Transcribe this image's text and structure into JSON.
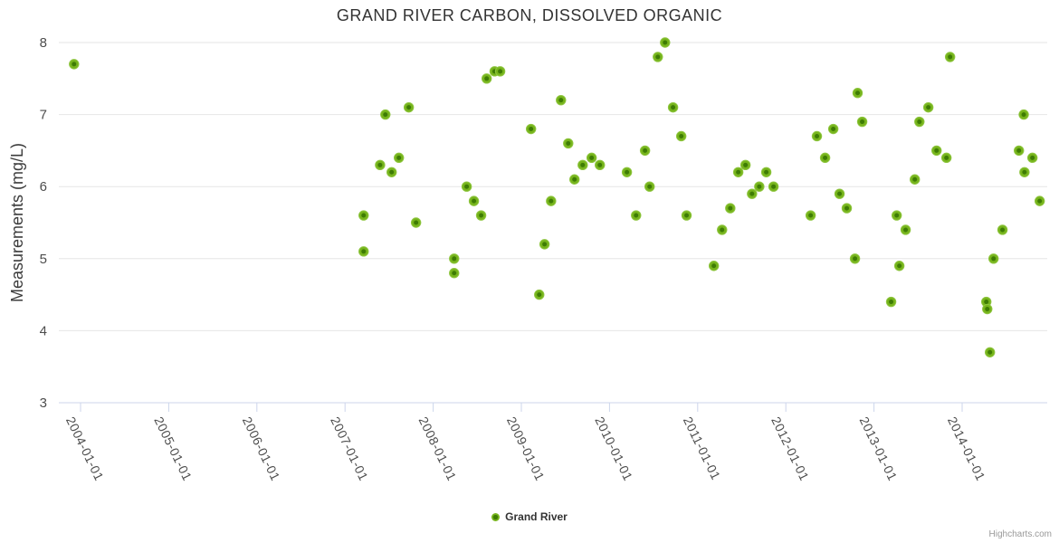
{
  "credits": "Highcharts.com",
  "colors": {
    "marker": "#76b41c",
    "marker_center": "#3e7c04",
    "marker_edge": "#8ec53f",
    "grid": "#e6e6e6",
    "axis_line": "#ccd6eb",
    "tick": "#ccd6eb",
    "axis_label": "#4d4d4d",
    "title": "#333333"
  },
  "chart_data": {
    "type": "scatter",
    "title": "GRAND RIVER CARBON, DISSOLVED ORGANIC",
    "xlabel": "",
    "ylabel": "Measurements (mg/L)",
    "ylim": [
      3,
      8
    ],
    "y_ticks": [
      3,
      4,
      5,
      6,
      7,
      8
    ],
    "x_ticks": [
      "2004-01-01",
      "2005-01-01",
      "2006-01-01",
      "2007-01-01",
      "2008-01-01",
      "2009-01-01",
      "2010-01-01",
      "2011-01-01",
      "2012-01-01",
      "2013-01-01",
      "2014-01-01"
    ],
    "x_range": [
      "2003-10-01",
      "2014-12-19"
    ],
    "grid": true,
    "legend_position": "bottom-center",
    "series": [
      {
        "name": "Grand River",
        "points": [
          [
            "2003-12-05",
            7.7
          ],
          [
            "2007-03-19",
            5.6
          ],
          [
            "2007-03-19",
            5.1
          ],
          [
            "2007-05-26",
            6.3
          ],
          [
            "2007-06-17",
            7.0
          ],
          [
            "2007-07-13",
            6.2
          ],
          [
            "2007-08-12",
            6.4
          ],
          [
            "2007-09-22",
            7.1
          ],
          [
            "2007-10-22",
            5.5
          ],
          [
            "2008-03-28",
            5.0
          ],
          [
            "2008-03-28",
            4.8
          ],
          [
            "2008-05-19",
            6.0
          ],
          [
            "2008-06-18",
            5.8
          ],
          [
            "2008-07-18",
            5.6
          ],
          [
            "2008-08-10",
            7.5
          ],
          [
            "2008-09-12",
            7.6
          ],
          [
            "2008-10-05",
            7.6
          ],
          [
            "2009-02-10",
            6.8
          ],
          [
            "2009-03-16",
            4.5
          ],
          [
            "2009-04-07",
            5.2
          ],
          [
            "2009-05-04",
            5.8
          ],
          [
            "2009-06-14",
            7.2
          ],
          [
            "2009-07-14",
            6.6
          ],
          [
            "2009-08-09",
            6.1
          ],
          [
            "2009-09-12",
            6.3
          ],
          [
            "2009-10-19",
            6.4
          ],
          [
            "2009-11-22",
            6.3
          ],
          [
            "2010-03-14",
            6.2
          ],
          [
            "2010-04-21",
            5.6
          ],
          [
            "2010-05-28",
            6.5
          ],
          [
            "2010-06-16",
            6.0
          ],
          [
            "2010-07-20",
            7.8
          ],
          [
            "2010-08-19",
            8.0
          ],
          [
            "2010-09-21",
            7.1
          ],
          [
            "2010-10-25",
            6.7
          ],
          [
            "2010-11-16",
            5.6
          ],
          [
            "2011-03-09",
            4.9
          ],
          [
            "2011-04-12",
            5.4
          ],
          [
            "2011-05-16",
            5.7
          ],
          [
            "2011-06-18",
            6.2
          ],
          [
            "2011-07-18",
            6.3
          ],
          [
            "2011-08-14",
            5.9
          ],
          [
            "2011-09-13",
            6.0
          ],
          [
            "2011-10-12",
            6.2
          ],
          [
            "2011-11-11",
            6.0
          ],
          [
            "2012-04-13",
            5.6
          ],
          [
            "2012-05-09",
            6.7
          ],
          [
            "2012-06-12",
            6.4
          ],
          [
            "2012-07-16",
            6.8
          ],
          [
            "2012-08-11",
            5.9
          ],
          [
            "2012-09-10",
            5.7
          ],
          [
            "2012-10-14",
            5.0
          ],
          [
            "2012-10-25",
            7.3
          ],
          [
            "2012-11-13",
            6.9
          ],
          [
            "2013-03-13",
            4.4
          ],
          [
            "2013-04-05",
            5.6
          ],
          [
            "2013-04-16",
            4.9
          ],
          [
            "2013-05-12",
            5.4
          ],
          [
            "2013-06-19",
            6.1
          ],
          [
            "2013-07-08",
            6.9
          ],
          [
            "2013-08-14",
            7.1
          ],
          [
            "2013-09-17",
            6.5
          ],
          [
            "2013-10-28",
            6.4
          ],
          [
            "2013-11-12",
            7.8
          ],
          [
            "2014-04-11",
            4.4
          ],
          [
            "2014-04-15",
            4.3
          ],
          [
            "2014-04-26",
            3.7
          ],
          [
            "2014-05-11",
            5.0
          ],
          [
            "2014-06-17",
            5.4
          ],
          [
            "2014-08-24",
            6.5
          ],
          [
            "2014-09-13",
            7.0
          ],
          [
            "2014-09-16",
            6.2
          ],
          [
            "2014-10-19",
            6.4
          ],
          [
            "2014-11-18",
            5.8
          ]
        ]
      }
    ]
  }
}
